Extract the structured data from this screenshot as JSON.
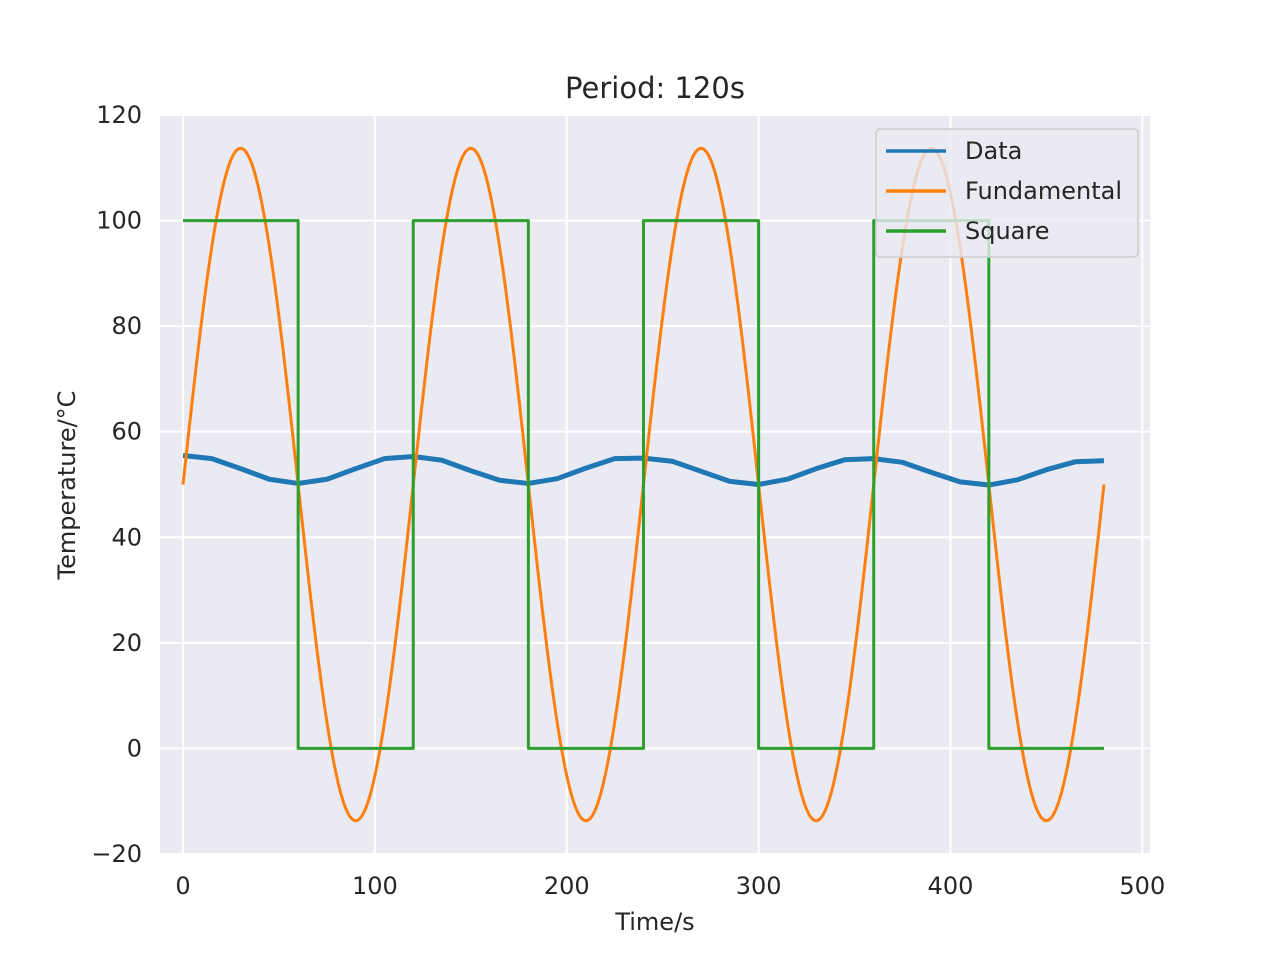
{
  "chart_data": {
    "type": "line",
    "title": "Period: 120s",
    "xlabel": "Time/s",
    "ylabel": "Temperature/°C",
    "xlim": [
      -12,
      504
    ],
    "ylim": [
      -20,
      120
    ],
    "xticks": [
      0,
      100,
      200,
      300,
      400,
      500
    ],
    "yticks": [
      -20,
      0,
      20,
      40,
      60,
      80,
      100,
      120
    ],
    "grid": true,
    "legend_position": "top-right",
    "series": [
      {
        "name": "Data",
        "color": "#1f77b4",
        "points": [
          [
            0,
            55.5
          ],
          [
            15,
            54.9
          ],
          [
            30,
            53.0
          ],
          [
            45,
            51.0
          ],
          [
            60,
            50.2
          ],
          [
            75,
            51.0
          ],
          [
            90,
            53.0
          ],
          [
            105,
            54.9
          ],
          [
            120,
            55.3
          ],
          [
            135,
            54.6
          ],
          [
            150,
            52.6
          ],
          [
            165,
            50.8
          ],
          [
            180,
            50.2
          ],
          [
            195,
            51.1
          ],
          [
            210,
            53.1
          ],
          [
            225,
            54.9
          ],
          [
            240,
            55.0
          ],
          [
            255,
            54.4
          ],
          [
            270,
            52.5
          ],
          [
            285,
            50.6
          ],
          [
            300,
            50.0
          ],
          [
            315,
            51.0
          ],
          [
            330,
            53.0
          ],
          [
            345,
            54.7
          ],
          [
            360,
            54.9
          ],
          [
            375,
            54.2
          ],
          [
            390,
            52.3
          ],
          [
            405,
            50.5
          ],
          [
            420,
            49.9
          ],
          [
            435,
            50.9
          ],
          [
            450,
            52.8
          ],
          [
            465,
            54.3
          ],
          [
            480,
            54.5
          ]
        ]
      },
      {
        "name": "Fundamental",
        "color": "#ff7f0e",
        "offset": 50,
        "amplitude": 63.7,
        "period": 120,
        "x_range": [
          0,
          480
        ]
      },
      {
        "name": "Square",
        "color": "#2ca02c",
        "points": [
          [
            0,
            100
          ],
          [
            60,
            100
          ],
          [
            60,
            0
          ],
          [
            120,
            0
          ],
          [
            120,
            100
          ],
          [
            180,
            100
          ],
          [
            180,
            0
          ],
          [
            240,
            0
          ],
          [
            240,
            100
          ],
          [
            300,
            100
          ],
          [
            300,
            0
          ],
          [
            360,
            0
          ],
          [
            360,
            100
          ],
          [
            420,
            100
          ],
          [
            420,
            0
          ],
          [
            480,
            0
          ]
        ]
      }
    ]
  }
}
